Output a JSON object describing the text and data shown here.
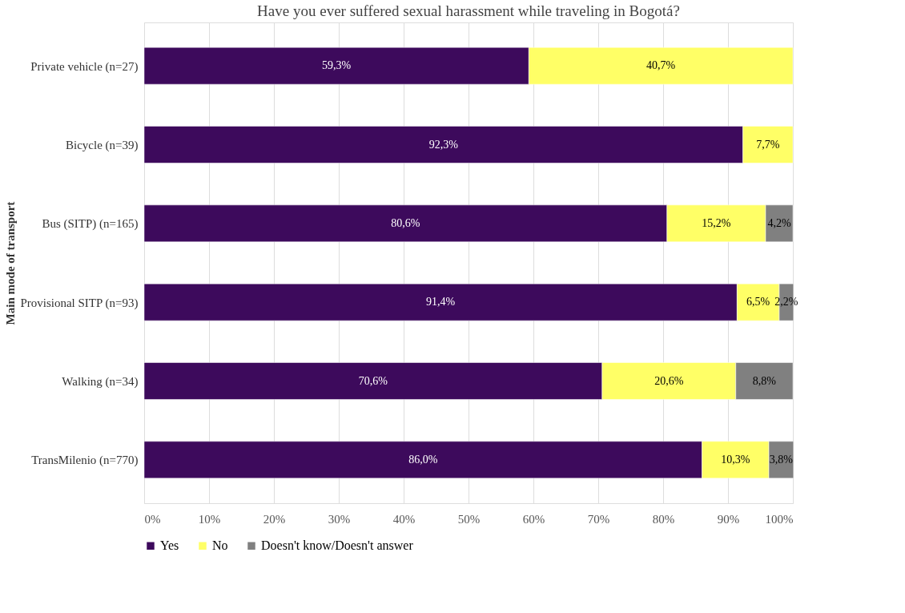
{
  "chart_data": {
    "type": "bar",
    "orientation": "horizontal",
    "stacked": true,
    "title": "Have you ever suffered sexual harassment while traveling in Bogotá?",
    "ylabel": "Main mode of transport",
    "categories": [
      "Private vehicle (n=27)",
      "Bicycle (n=39)",
      "Bus (SITP) (n=165)",
      "Provisional SITP (n=93)",
      "Walking (n=34)",
      "TransMilenio (n=770)"
    ],
    "series": [
      {
        "name": "Yes",
        "color": "#3d0a5c",
        "values": [
          59.3,
          92.3,
          80.6,
          91.4,
          70.6,
          86.0
        ],
        "value_labels": [
          "59,3%",
          "92,3%",
          "80,6%",
          "91,4%",
          "70,6%",
          "86,0%"
        ]
      },
      {
        "name": "No",
        "color": "#ffff66",
        "values": [
          40.7,
          7.7,
          15.2,
          6.5,
          20.6,
          10.3
        ],
        "value_labels": [
          "40,7%",
          "7,7%",
          "15,2%",
          "6,5%",
          "20,6%",
          "10,3%"
        ]
      },
      {
        "name": "Doesn't know/Doesn't answer",
        "color": "#808080",
        "values": [
          null,
          null,
          4.2,
          2.2,
          8.8,
          3.8
        ],
        "value_labels": [
          null,
          null,
          "4,2%",
          "2,2%",
          "8,8%",
          "3,8%"
        ]
      }
    ],
    "xlim": [
      0,
      100
    ],
    "xticks": [
      {
        "value": 0,
        "label": "0%"
      },
      {
        "value": 10,
        "label": "10%"
      },
      {
        "value": 20,
        "label": "20%"
      },
      {
        "value": 30,
        "label": "30%"
      },
      {
        "value": 40,
        "label": "40%"
      },
      {
        "value": 50,
        "label": "50%"
      },
      {
        "value": 60,
        "label": "60%"
      },
      {
        "value": 70,
        "label": "70%"
      },
      {
        "value": 80,
        "label": "80%"
      },
      {
        "value": 90,
        "label": "90%"
      },
      {
        "value": 100,
        "label": "100%"
      }
    ],
    "grid": "x",
    "legend": "bottom"
  }
}
